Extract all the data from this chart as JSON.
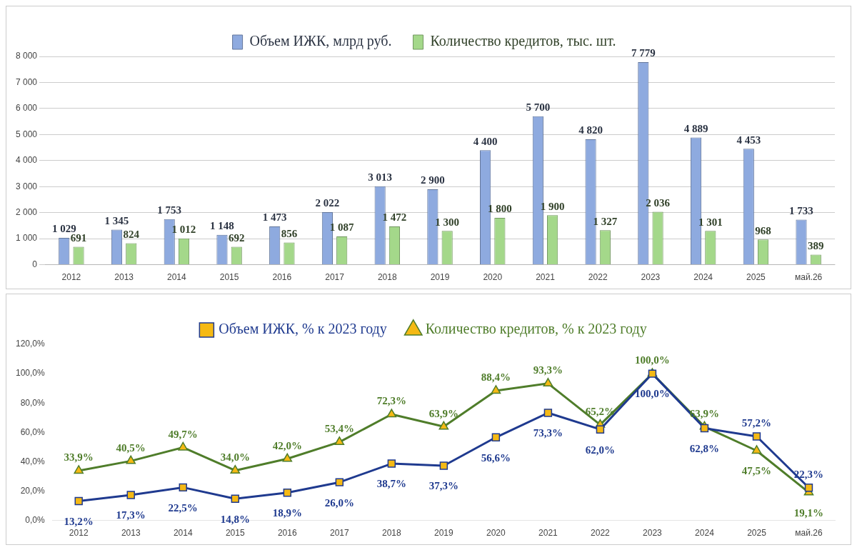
{
  "chart_data": [
    {
      "type": "bar",
      "categories": [
        "2012",
        "2013",
        "2014",
        "2015",
        "2016",
        "2017",
        "2018",
        "2019",
        "2020",
        "2021",
        "2022",
        "2023",
        "2024",
        "2025",
        "май.26"
      ],
      "series": [
        {
          "name": "Объем ИЖК, млрд руб.",
          "color": "#8eaadf",
          "values": [
            1029,
            1345,
            1753,
            1148,
            1473,
            2022,
            3013,
            2900,
            4400,
            5700,
            4820,
            7779,
            4889,
            4453,
            1733
          ],
          "value_labels": [
            "1 029",
            "1 345",
            "1 753",
            "1 148",
            "1 473",
            "2 022",
            "3 013",
            "2 900",
            "4 400",
            "5 700",
            "4 820",
            "7 779",
            "4 889",
            "4 453",
            "1 733"
          ]
        },
        {
          "name": "Количество кредитов, тыс. шт.",
          "color": "#a4d88a",
          "values": [
            691,
            824,
            1012,
            692,
            856,
            1087,
            1472,
            1300,
            1800,
            1900,
            1327,
            2036,
            1301,
            968,
            389
          ],
          "value_labels": [
            "691",
            "824",
            "1 012",
            "692",
            "856",
            "1 087",
            "1 472",
            "1 300",
            "1 800",
            "1 900",
            "1 327",
            "2 036",
            "1 301",
            "968",
            "389"
          ]
        }
      ],
      "ylim": [
        0,
        8000
      ],
      "yticks": [
        0,
        {
          "value": 1000,
          "label": "1 000"
        },
        {
          "value": 2000,
          "label": "2 000"
        },
        {
          "value": 3000,
          "label": "3 000"
        },
        {
          "value": 4000,
          "label": "4 000"
        },
        {
          "value": 5000,
          "label": "5 000"
        },
        {
          "value": 6000,
          "label": "6 000"
        },
        {
          "value": 7000,
          "label": "7 000"
        },
        {
          "value": 8000,
          "label": "8 000"
        }
      ],
      "grid": "y",
      "legend": "top"
    },
    {
      "type": "line",
      "categories": [
        "2012",
        "2013",
        "2014",
        "2015",
        "2016",
        "2017",
        "2018",
        "2019",
        "2020",
        "2021",
        "2022",
        "2023",
        "2024",
        "2025",
        "май.26"
      ],
      "series": [
        {
          "name": "Объем ИЖК, % к 2023 году",
          "color": "#1f3a8f",
          "marker": "square",
          "values": [
            13.2,
            17.3,
            22.5,
            14.8,
            18.9,
            26.0,
            38.7,
            37.3,
            56.6,
            73.3,
            62.0,
            100.0,
            62.8,
            57.2,
            22.3
          ],
          "value_labels": [
            "13,2%",
            "17,3%",
            "22,5%",
            "14,8%",
            "18,9%",
            "26,0%",
            "38,7%",
            "37,3%",
            "56,6%",
            "73,3%",
            "62,0%",
            "100,0%",
            "62,8%",
            "57,2%",
            "22,3%"
          ]
        },
        {
          "name": "Количество кредитов, % к 2023 году",
          "color": "#4f7d2a",
          "marker": "triangle",
          "values": [
            33.9,
            40.5,
            49.7,
            34.0,
            42.0,
            53.4,
            72.3,
            63.9,
            88.4,
            93.3,
            65.2,
            100.0,
            63.9,
            47.5,
            19.1
          ],
          "value_labels": [
            "33,9%",
            "40,5%",
            "49,7%",
            "34,0%",
            "42,0%",
            "53,4%",
            "72,3%",
            "63,9%",
            "88,4%",
            "93,3%",
            "65,2%",
            "100,0%",
            "63,9%",
            "47,5%",
            "19,1%"
          ]
        }
      ],
      "ylim": [
        0,
        120
      ],
      "yticks": [
        {
          "value": 0,
          "label": "0,0%"
        },
        {
          "value": 20,
          "label": "20,0%"
        },
        {
          "value": 40,
          "label": "40,0%"
        },
        {
          "value": 60,
          "label": "60,0%"
        },
        {
          "value": 80,
          "label": "80,0%"
        },
        {
          "value": 100,
          "label": "100,0%"
        },
        {
          "value": 120,
          "label": "120,0%"
        }
      ],
      "grid": false,
      "legend": "top"
    }
  ]
}
